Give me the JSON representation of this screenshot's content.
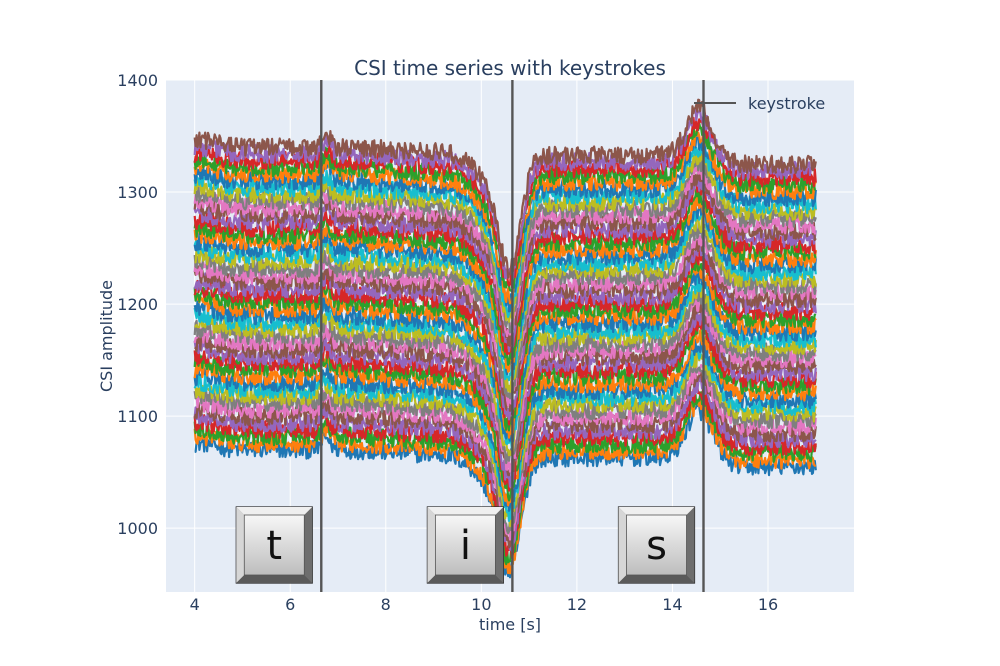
{
  "chart_data": {
    "type": "line",
    "title": "CSI time series with keystrokes",
    "xlabel": "time [s]",
    "ylabel": "CSI amplitude",
    "xlim": [
      3.4,
      17.8
    ],
    "ylim": [
      943,
      1400
    ],
    "xticks": [
      4,
      6,
      8,
      10,
      12,
      14,
      16
    ],
    "yticks": [
      1000,
      1100,
      1200,
      1300,
      1400
    ],
    "grid": true,
    "legend": {
      "label": "keystroke",
      "placement": "top-right"
    },
    "t_start": 4.0,
    "t_end": 17.0,
    "keystrokes": [
      {
        "time": 6.65,
        "key": "t"
      },
      {
        "time": 10.65,
        "key": "i"
      },
      {
        "time": 14.65,
        "key": "s"
      }
    ],
    "series_colors": [
      "#1f77b4",
      "#ff7f0e",
      "#2ca02c",
      "#d62728",
      "#9467bd",
      "#8c564b",
      "#e377c2",
      "#7f7f7f",
      "#bcbd22",
      "#17becf"
    ],
    "series_baselines": [
      1070,
      1076,
      1082,
      1088,
      1094,
      1100,
      1106,
      1112,
      1118,
      1124,
      1130,
      1136,
      1142,
      1148,
      1154,
      1160,
      1166,
      1172,
      1178,
      1184,
      1190,
      1196,
      1202,
      1208,
      1214,
      1220,
      1226,
      1232,
      1238,
      1244,
      1250,
      1256,
      1262,
      1268,
      1274,
      1280,
      1286,
      1292,
      1298,
      1304,
      1310,
      1316,
      1322,
      1328,
      1334,
      1340
    ]
  }
}
